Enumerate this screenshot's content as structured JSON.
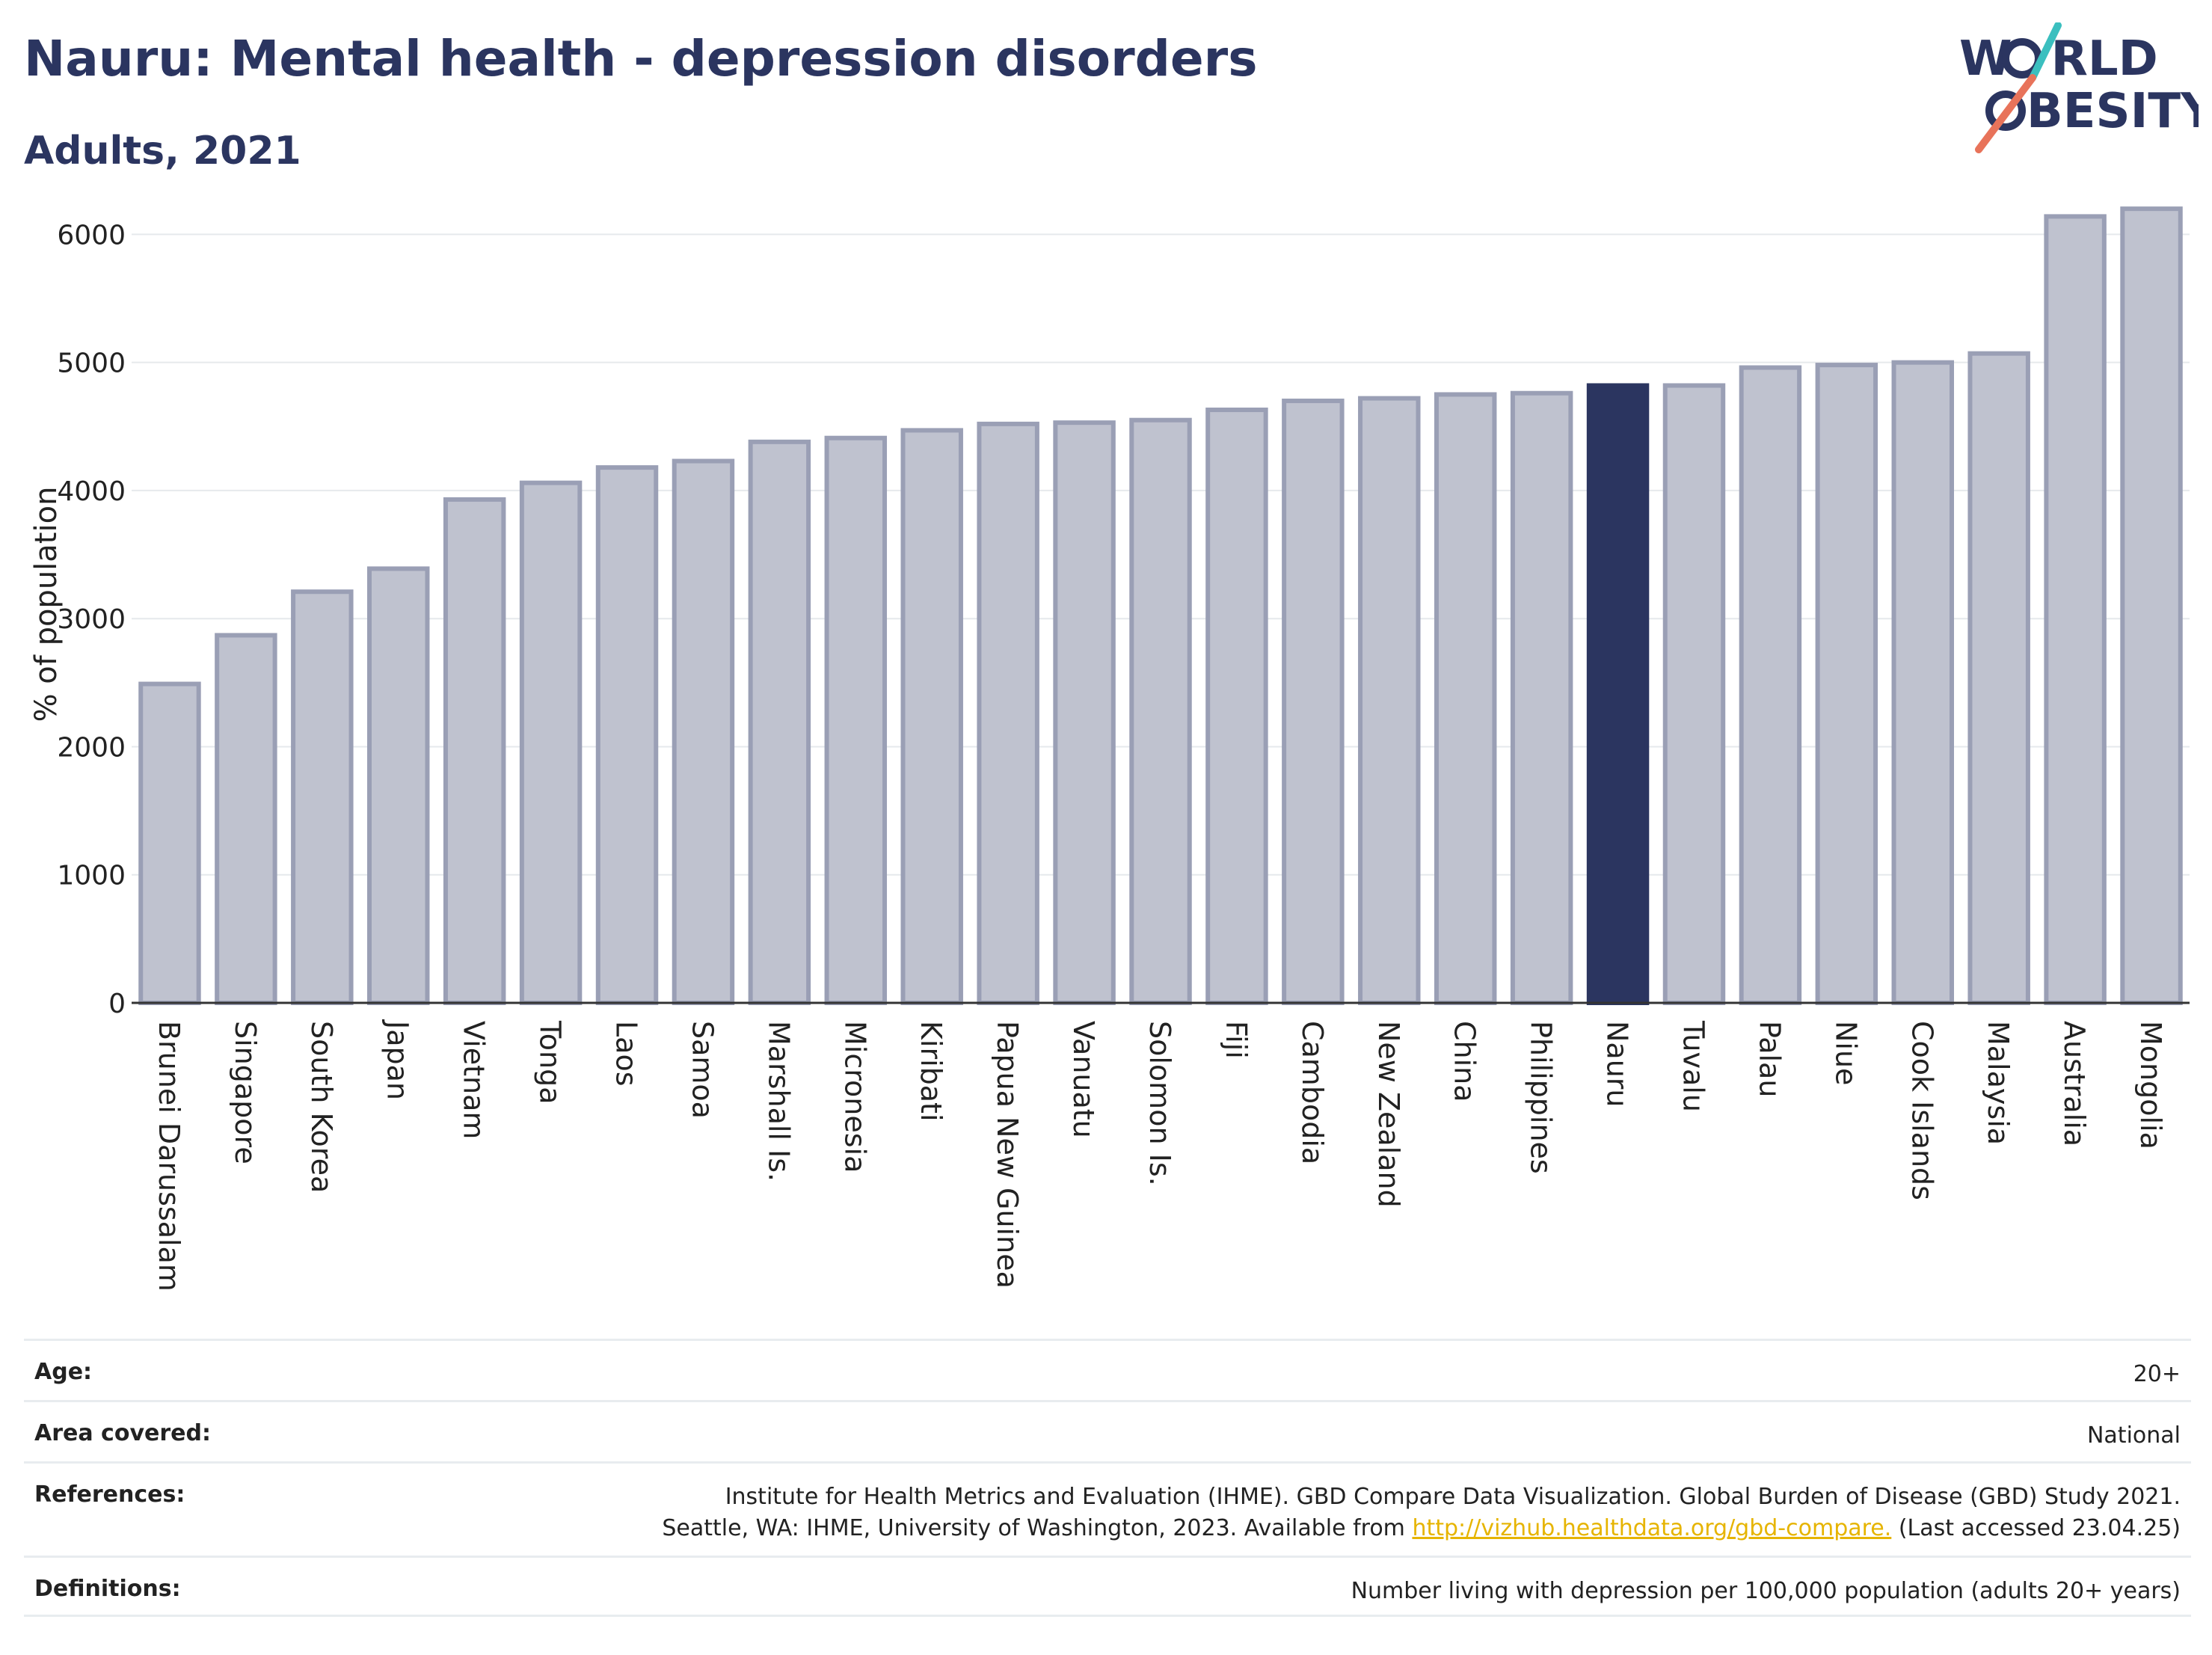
{
  "header": {
    "title": "Nauru: Mental health - depression disorders",
    "subtitle": "Adults, 2021"
  },
  "logo": {
    "line1": "W",
    "line1_rest": "RLD",
    "line2_rest": "BESITY",
    "colors": {
      "text": "#2b3560",
      "slash_top": "#3bbfbf",
      "slash_bottom": "#e8735a"
    }
  },
  "chart_data": {
    "type": "bar",
    "title": "Nauru: Mental health - depression disorders",
    "subtitle": "Adults, 2021",
    "ylabel": "% of population",
    "xlabel": "",
    "ylim": [
      0,
      6300
    ],
    "yticks": [
      0,
      1000,
      2000,
      3000,
      4000,
      5000,
      6000
    ],
    "grid": true,
    "highlight": "Nauru",
    "colors": {
      "bar": "#bfc2cf",
      "bar_border": "#9a9fb5",
      "highlight": "#2b3560",
      "grid": "#e6e9ec"
    },
    "categories": [
      "Brunei Darussalam",
      "Singapore",
      "South Korea",
      "Japan",
      "Vietnam",
      "Tonga",
      "Laos",
      "Samoa",
      "Marshall Is.",
      "Micronesia",
      "Kiribati",
      "Papua New Guinea",
      "Vanuatu",
      "Solomon Is.",
      "Fiji",
      "Cambodia",
      "New Zealand",
      "China",
      "Philippines",
      "Nauru",
      "Tuvalu",
      "Palau",
      "Niue",
      "Cook Islands",
      "Malaysia",
      "Australia",
      "Mongolia"
    ],
    "values": [
      2490,
      2870,
      3210,
      3390,
      3930,
      4060,
      4180,
      4230,
      4380,
      4410,
      4470,
      4520,
      4530,
      4550,
      4630,
      4700,
      4720,
      4750,
      4760,
      4820,
      4820,
      4960,
      4980,
      5000,
      5070,
      6140,
      6200
    ]
  },
  "meta": [
    {
      "label": "Age:",
      "value": "20+"
    },
    {
      "label": "Area covered:",
      "value": "National"
    },
    {
      "label": "References:",
      "value_line1": "Institute for Health Metrics and Evaluation (IHME). GBD Compare Data Visualization. Global Burden of Disease (GBD) Study 2021.",
      "value_line2_pre": "Seattle, WA: IHME, University of Washington, 2023. Available from ",
      "link": "http://vizhub.healthdata.org/gbd-compare.",
      "value_line2_post": " (Last accessed 23.04.25)"
    },
    {
      "label": "Definitions:",
      "value": "Number living with depression per 100,000 population (adults 20+ years)"
    }
  ]
}
